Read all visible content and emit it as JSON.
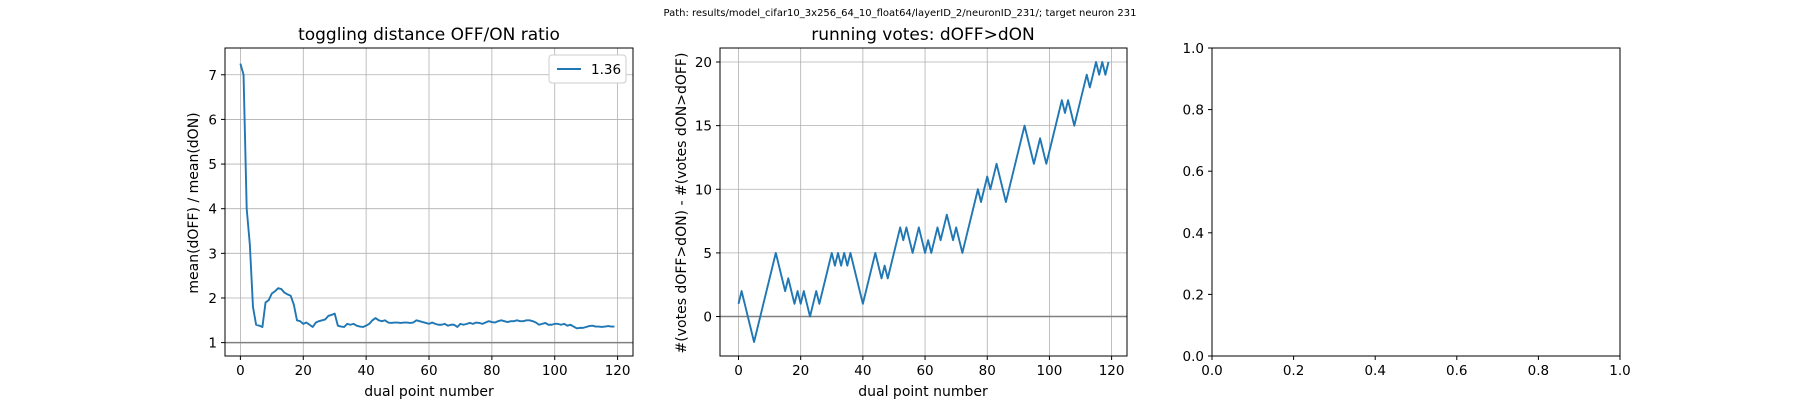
{
  "suptitle": "Path: results/model_cifar10_3x256_64_10_float64/layerID_2/neuronID_231/; target neuron 231",
  "chart_data": [
    {
      "type": "line",
      "title": "toggling distance OFF/ON ratio",
      "xlabel": "dual point number",
      "ylabel": "mean(dOFF) / mean(dON)",
      "xlim": [
        -4.9,
        124.9
      ],
      "ylim": [
        0.7,
        7.6
      ],
      "xticks": [
        0,
        20,
        40,
        60,
        80,
        100,
        120
      ],
      "yticks": [
        1,
        2,
        3,
        4,
        5,
        6,
        7
      ],
      "grid": true,
      "legend": "top-right",
      "hline": 1,
      "series": [
        {
          "name": "1.36",
          "color": "#1f77b4",
          "x": [
            0,
            1,
            2,
            3,
            4,
            5,
            6,
            7,
            8,
            9,
            10,
            11,
            12,
            13,
            14,
            15,
            16,
            17,
            18,
            19,
            20,
            21,
            22,
            23,
            24,
            25,
            26,
            27,
            28,
            29,
            30,
            31,
            32,
            33,
            34,
            35,
            36,
            37,
            38,
            39,
            40,
            41,
            42,
            43,
            44,
            45,
            46,
            47,
            48,
            49,
            50,
            51,
            52,
            53,
            54,
            55,
            56,
            57,
            58,
            59,
            60,
            61,
            62,
            63,
            64,
            65,
            66,
            67,
            68,
            69,
            70,
            71,
            72,
            73,
            74,
            75,
            76,
            77,
            78,
            79,
            80,
            81,
            82,
            83,
            84,
            85,
            86,
            87,
            88,
            89,
            90,
            91,
            92,
            93,
            94,
            95,
            96,
            97,
            98,
            99,
            100,
            101,
            102,
            103,
            104,
            105,
            106,
            107,
            108,
            109,
            110,
            111,
            112,
            113,
            114,
            115,
            116,
            117,
            118,
            119
          ],
          "values": [
            7.25,
            7.0,
            4.0,
            3.2,
            1.8,
            1.4,
            1.38,
            1.35,
            1.9,
            1.95,
            2.1,
            2.15,
            2.22,
            2.2,
            2.12,
            2.08,
            2.05,
            1.85,
            1.5,
            1.48,
            1.42,
            1.45,
            1.4,
            1.35,
            1.45,
            1.48,
            1.5,
            1.52,
            1.6,
            1.62,
            1.65,
            1.38,
            1.36,
            1.35,
            1.42,
            1.4,
            1.42,
            1.38,
            1.36,
            1.35,
            1.38,
            1.42,
            1.5,
            1.55,
            1.5,
            1.48,
            1.5,
            1.45,
            1.44,
            1.45,
            1.45,
            1.44,
            1.45,
            1.45,
            1.44,
            1.45,
            1.5,
            1.48,
            1.46,
            1.44,
            1.42,
            1.45,
            1.42,
            1.4,
            1.4,
            1.42,
            1.38,
            1.4,
            1.4,
            1.35,
            1.42,
            1.4,
            1.42,
            1.44,
            1.42,
            1.45,
            1.44,
            1.42,
            1.45,
            1.48,
            1.46,
            1.45,
            1.48,
            1.5,
            1.48,
            1.46,
            1.48,
            1.48,
            1.5,
            1.48,
            1.48,
            1.5,
            1.5,
            1.48,
            1.45,
            1.4,
            1.42,
            1.44,
            1.4,
            1.4,
            1.42,
            1.42,
            1.4,
            1.42,
            1.38,
            1.4,
            1.36,
            1.32,
            1.33,
            1.33,
            1.35,
            1.37,
            1.38,
            1.36,
            1.36,
            1.35,
            1.36,
            1.37,
            1.36,
            1.36
          ]
        }
      ]
    },
    {
      "type": "line",
      "title": "running votes: dOFF>dON",
      "xlabel": "dual point number",
      "ylabel": "#(votes dOFF>dON) - #(votes dON>dOFF)",
      "xlim": [
        -5.95,
        124.95
      ],
      "ylim": [
        -3.1,
        21.1
      ],
      "xticks": [
        0,
        20,
        40,
        60,
        80,
        100,
        120
      ],
      "yticks": [
        0,
        5,
        10,
        15,
        20
      ],
      "grid": true,
      "hline": 0,
      "series": [
        {
          "color": "#1f77b4",
          "x": [
            0,
            1,
            2,
            3,
            4,
            5,
            6,
            7,
            8,
            9,
            10,
            11,
            12,
            13,
            14,
            15,
            16,
            17,
            18,
            19,
            20,
            21,
            22,
            23,
            24,
            25,
            26,
            27,
            28,
            29,
            30,
            31,
            32,
            33,
            34,
            35,
            36,
            37,
            38,
            39,
            40,
            41,
            42,
            43,
            44,
            45,
            46,
            47,
            48,
            49,
            50,
            51,
            52,
            53,
            54,
            55,
            56,
            57,
            58,
            59,
            60,
            61,
            62,
            63,
            64,
            65,
            66,
            67,
            68,
            69,
            70,
            71,
            72,
            73,
            74,
            75,
            76,
            77,
            78,
            79,
            80,
            81,
            82,
            83,
            84,
            85,
            86,
            87,
            88,
            89,
            90,
            91,
            92,
            93,
            94,
            95,
            96,
            97,
            98,
            99,
            100,
            101,
            102,
            103,
            104,
            105,
            106,
            107,
            108,
            109,
            110,
            111,
            112,
            113,
            114,
            115,
            116,
            117,
            118,
            119
          ],
          "values": [
            1,
            2,
            1,
            0,
            -1,
            -2,
            -1,
            0,
            1,
            2,
            3,
            4,
            5,
            4,
            3,
            2,
            3,
            2,
            1,
            2,
            1,
            2,
            1,
            0,
            1,
            2,
            1,
            2,
            3,
            4,
            5,
            4,
            5,
            4,
            5,
            4,
            5,
            4,
            3,
            2,
            1,
            2,
            3,
            4,
            5,
            4,
            3,
            4,
            3,
            4,
            5,
            6,
            7,
            6,
            7,
            6,
            5,
            6,
            7,
            6,
            5,
            6,
            5,
            6,
            7,
            6,
            7,
            8,
            7,
            6,
            7,
            6,
            5,
            6,
            7,
            8,
            9,
            10,
            9,
            10,
            11,
            10,
            11,
            12,
            11,
            10,
            9,
            10,
            11,
            12,
            13,
            14,
            15,
            14,
            13,
            12,
            13,
            14,
            13,
            12,
            13,
            14,
            15,
            16,
            17,
            16,
            17,
            16,
            15,
            16,
            17,
            18,
            19,
            18,
            19,
            20,
            19,
            20,
            19,
            20
          ]
        }
      ]
    },
    {
      "type": "line",
      "xlim": [
        0,
        1
      ],
      "ylim": [
        0,
        1
      ],
      "xticks": [
        0.0,
        0.2,
        0.4,
        0.6,
        0.8,
        1.0
      ],
      "yticks": [
        0.0,
        0.2,
        0.4,
        0.6,
        0.8,
        1.0
      ],
      "xtick_labels": [
        "0.0",
        "0.2",
        "0.4",
        "0.6",
        "0.8",
        "1.0"
      ],
      "ytick_labels": [
        "0.0",
        "0.2",
        "0.4",
        "0.6",
        "0.8",
        "1.0"
      ],
      "grid": false,
      "series": []
    }
  ]
}
